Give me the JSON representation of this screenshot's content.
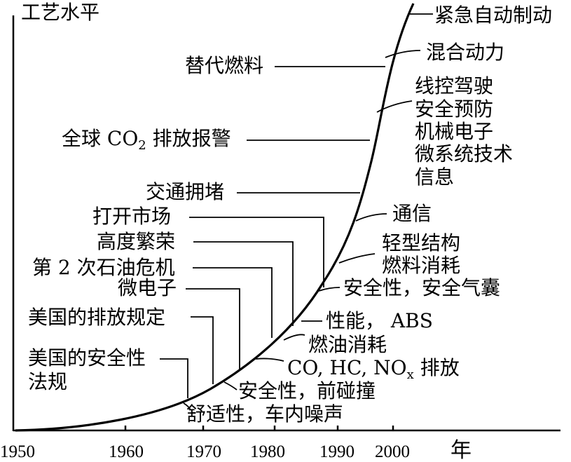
{
  "axes": {
    "y_title": "工艺水平",
    "x_title": "年",
    "ticks": [
      "1950",
      "1960",
      "1970",
      "1980",
      "1990",
      "2000"
    ]
  },
  "labels": {
    "emergency_braking": "紧急自动制动",
    "hybrid": "混合动力",
    "drive_by_wire": "线控驾驶",
    "safety_prevention": "安全预防",
    "mechatronics": "机械电子",
    "micro_systems": "微系统技术",
    "information": "信息",
    "communication": "通信",
    "lightweight": "轻型结构",
    "fuel_consumption_1": "燃料消耗",
    "airbag": "安全性，安全气囊",
    "performance": "性能， ABS",
    "fuel_consumption_2": "燃油消耗",
    "emissions_prefix": "CO, HC, NO",
    "emissions_sub": "x",
    "emissions_suffix": " 排放",
    "crash_safety": "安全性，前碰撞",
    "comfort": "舒适性，车内噪声",
    "alt_fuels": "替代燃料",
    "co2_prefix": "全球 CO",
    "co2_sub": "2",
    "co2_suffix": " 排放报警",
    "traffic": "交通拥堵",
    "open_market": "打开市场",
    "prosperity": "高度繁荣",
    "oil_crisis": "第 2 次石油危机",
    "microelectronics": "微电子",
    "us_emissions": "美国的排放规定",
    "us_safety_1": "美国的安全性",
    "us_safety_2": "法规"
  }
}
